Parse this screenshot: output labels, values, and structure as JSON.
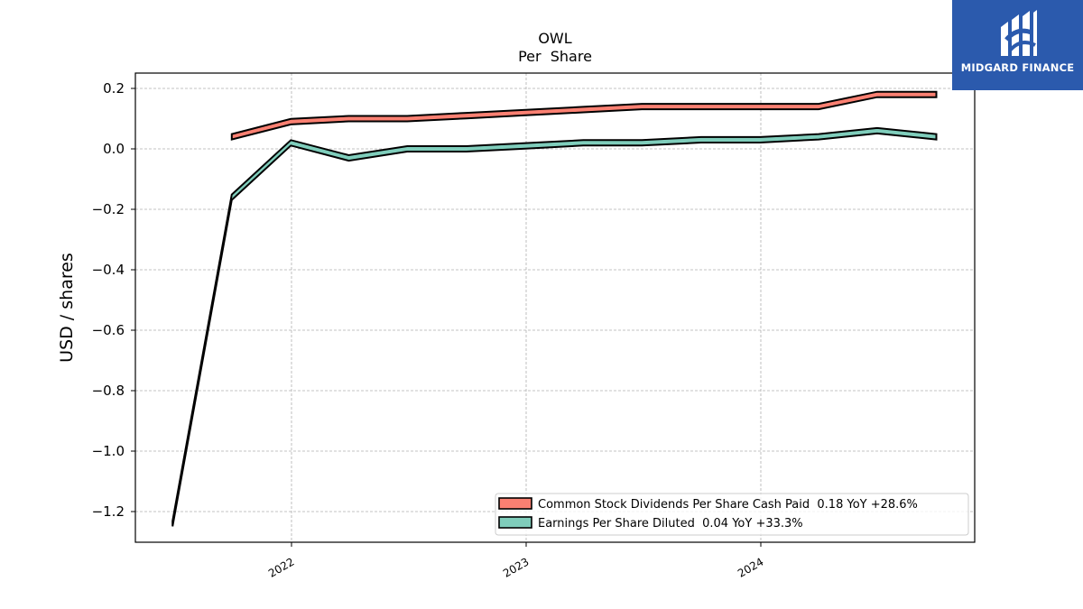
{
  "chart_data": {
    "type": "line",
    "title": "OWL",
    "subtitle": "Per  Share",
    "xlabel": "",
    "ylabel": "USD / shares",
    "x_ticks": [
      "2022",
      "2023",
      "2024"
    ],
    "y_ticks": [
      "0.2",
      "0.0",
      "−0.2",
      "−0.4",
      "−0.6",
      "−0.8",
      "−1.0",
      "−1.2"
    ],
    "ylim": [
      -1.3,
      0.25
    ],
    "grid": true,
    "legend_position": "lower-right",
    "series": [
      {
        "name": "Common Stock Dividends Per Share Cash Paid  0.18 YoY +28.6%",
        "color": "#fa8072",
        "x": [
          "2021-09-30",
          "2021-12-31",
          "2022-03-31",
          "2022-06-30",
          "2022-09-30",
          "2022-12-31",
          "2023-03-31",
          "2023-06-30",
          "2023-09-30",
          "2023-12-31",
          "2024-03-31",
          "2024-06-30",
          "2024-09-30"
        ],
        "values": [
          0.04,
          0.09,
          0.1,
          0.1,
          0.11,
          0.12,
          0.13,
          0.14,
          0.14,
          0.14,
          0.14,
          0.18,
          0.18
        ]
      },
      {
        "name": "Earnings Per Share Diluted  0.04 YoY +33.3%",
        "color": "#7fcdbb",
        "x": [
          "2021-06-30",
          "2021-09-30",
          "2021-12-31",
          "2022-03-31",
          "2022-06-30",
          "2022-09-30",
          "2022-12-31",
          "2023-03-31",
          "2023-06-30",
          "2023-09-30",
          "2023-12-31",
          "2024-03-31",
          "2024-06-30",
          "2024-09-30"
        ],
        "values": [
          -1.24,
          -0.16,
          0.02,
          -0.03,
          0.0,
          0.0,
          0.01,
          0.02,
          0.02,
          0.03,
          0.03,
          0.04,
          0.06,
          0.04
        ]
      }
    ]
  },
  "logo": {
    "text": "MIDGARD FINANCE",
    "bg_color": "#2b5aad"
  }
}
